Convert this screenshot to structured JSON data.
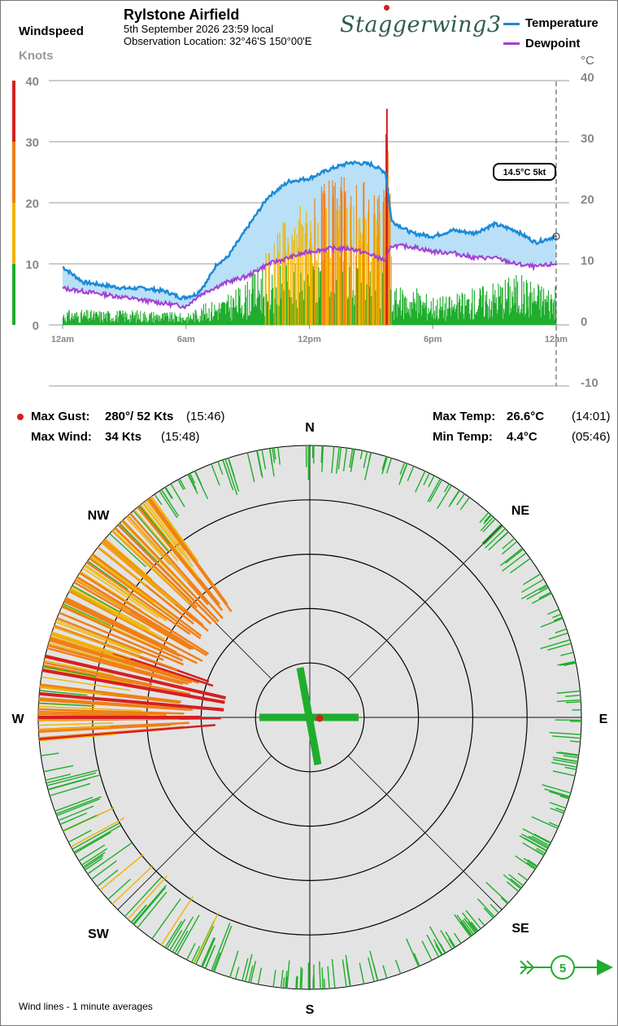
{
  "header": {
    "windspeed_label": "Windspeed",
    "units_label": "Knots",
    "station_title": "Rylstone Airfield",
    "date_line": "5th September 2026  23:59 local",
    "location_line": "Observation Location:  32°46'S 150°00'E",
    "logo_text": "Staggerwing3",
    "temp_unit": "°C"
  },
  "legend": [
    {
      "name": "Temperature",
      "color": "#1a8ad8"
    },
    {
      "name": "Dewpoint",
      "color": "#a33fd6"
    }
  ],
  "colors": {
    "calm": "#1fad2c",
    "moderate": "#f0b400",
    "strong": "#f07f16",
    "gale": "#d61f1f",
    "band": "#b9e0f7",
    "rose_bg": "#e3e3e3"
  },
  "stats": {
    "max_gust_label": "Max Gust:",
    "max_gust_value": "280°/  52 Kts",
    "max_gust_time": "(15:46)",
    "max_wind_label": "Max Wind:",
    "max_wind_value": "34 Kts",
    "max_wind_time": "(15:48)",
    "max_temp_label": "Max Temp:",
    "max_temp_value": "26.6°C",
    "max_temp_time": "(14:01)",
    "min_temp_label": "Min Temp:",
    "min_temp_value": "4.4°C",
    "min_temp_time": "(05:46)"
  },
  "current_tag": "14.5°C  5kt",
  "footer_note": "Wind lines - 1 minute averages",
  "current_wind_badge": "5",
  "rose_labels": {
    "n": "N",
    "ne": "NE",
    "e": "E",
    "se": "SE",
    "s": "S",
    "sw": "SW",
    "w": "W",
    "nw": "NW"
  },
  "chart_data": [
    {
      "type": "line",
      "title": "Rylstone Airfield",
      "x_ticks": [
        "12am",
        "6am",
        "12pm",
        "6pm",
        "12am"
      ],
      "x_range_hours": [
        0,
        24
      ],
      "y_left": {
        "label": "Knots",
        "ticks": [
          0,
          10,
          20,
          30,
          40
        ],
        "range": [
          0,
          40
        ]
      },
      "y_right": {
        "label": "°C",
        "ticks": [
          -10,
          0,
          10,
          20,
          30,
          40
        ],
        "range": [
          -10,
          40
        ]
      },
      "grid": true,
      "legend_placement": "top-right",
      "temperature": {
        "hours": [
          0,
          1,
          2,
          3,
          4,
          5,
          5.8,
          6.5,
          7,
          7.5,
          8,
          9,
          10,
          11,
          12,
          13,
          14,
          15,
          15.7,
          16,
          17,
          18,
          19,
          20,
          21,
          22,
          23,
          24
        ],
        "values": [
          9.5,
          7,
          6.5,
          6,
          6,
          5.5,
          4.4,
          5,
          7,
          10,
          11,
          16,
          21,
          23.5,
          24,
          25.5,
          26.6,
          26.3,
          25,
          17,
          15,
          14.5,
          15.5,
          15,
          16.5,
          15.5,
          13.5,
          14.5
        ]
      },
      "dewpoint": {
        "hours": [
          0,
          1,
          2,
          3,
          4,
          5,
          6,
          6.5,
          7,
          8,
          9,
          10,
          11,
          12,
          13,
          14,
          15,
          15.7,
          16,
          17,
          18,
          19,
          20,
          21,
          22,
          23,
          24
        ],
        "values": [
          6,
          5.5,
          5,
          4.5,
          4,
          3.5,
          3,
          4.5,
          5.5,
          7,
          8,
          10,
          11,
          12,
          12.5,
          12.5,
          11.5,
          10.5,
          13,
          12.8,
          12,
          11.8,
          11,
          11,
          10,
          9.5,
          10
        ]
      },
      "windspeed": {
        "hours": [
          0,
          2,
          4,
          6,
          7,
          8,
          9,
          10,
          11,
          12,
          13,
          14,
          15,
          15.5,
          15.8,
          16,
          17,
          18,
          19,
          20,
          21,
          22,
          23,
          24
        ],
        "values": [
          2,
          2,
          2,
          1.5,
          3,
          4,
          6,
          10,
          15,
          18,
          19,
          20,
          19,
          17,
          34,
          5,
          5,
          4,
          4,
          5,
          6,
          7,
          6,
          5
        ]
      },
      "gust_peak": {
        "hour": 15.77,
        "value": 34
      },
      "current": {
        "temp": 14.5,
        "wind": 5
      }
    },
    {
      "type": "polar",
      "title": "",
      "direction_labels": [
        "N",
        "NE",
        "E",
        "SE",
        "S",
        "SW",
        "W",
        "NW"
      ],
      "rings": 5,
      "max_gust": {
        "direction_deg": 280,
        "speed_kt": 52,
        "time": "15:46"
      },
      "sectors": [
        {
          "from_deg": 290,
          "to_deg": 325,
          "typical_kt": 20,
          "peak_kt": 28
        },
        {
          "from_deg": 265,
          "to_deg": 290,
          "typical_kt": 22,
          "peak_kt": 34
        },
        {
          "from_deg": 200,
          "to_deg": 265,
          "typical_kt": 8,
          "peak_kt": 12
        },
        {
          "from_deg": 325,
          "to_deg": 360,
          "typical_kt": 5,
          "peak_kt": 7
        },
        {
          "from_deg": 0,
          "to_deg": 200,
          "typical_kt": 4,
          "peak_kt": 6
        }
      ]
    }
  ]
}
